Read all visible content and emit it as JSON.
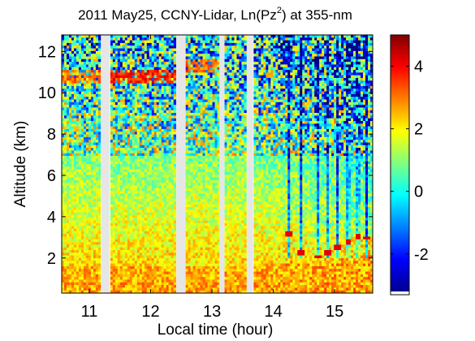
{
  "chart_data": {
    "type": "heatmap",
    "title_parts": {
      "prefix": "2011 May25, CCNY-Lidar, Ln(Pz",
      "superscript": "2",
      "suffix": ") at 355-nm"
    },
    "xlabel": "Local time (hour)",
    "ylabel": "Altitude (km)",
    "xlim": [
      10.55,
      15.62
    ],
    "ylim": [
      0.3,
      12.8
    ],
    "x_ticks": [
      "11",
      "12",
      "13",
      "14",
      "15"
    ],
    "x_tick_values": [
      11,
      12,
      13,
      14,
      15
    ],
    "y_ticks": [
      "2",
      "4",
      "6",
      "8",
      "10",
      "12"
    ],
    "y_tick_values": [
      2,
      4,
      6,
      8,
      10,
      12
    ],
    "colorbar": {
      "range": [
        -3.2,
        5.0
      ],
      "ticks": [
        "-2",
        "0",
        "2",
        "4"
      ],
      "tick_values": [
        -2,
        0,
        2,
        4
      ],
      "colormap": "jet"
    },
    "data_gaps_hours": [
      [
        11.2,
        11.33
      ],
      [
        12.42,
        12.57
      ],
      [
        13.12,
        13.2
      ],
      [
        13.57,
        13.67
      ]
    ],
    "cloud_layers": [
      {
        "x_range": [
          10.55,
          11.2
        ],
        "altitude_km": 10.8,
        "value": 2.3
      },
      {
        "x_range": [
          11.33,
          12.42
        ],
        "altitude_km": 10.8,
        "value": 3.0
      },
      {
        "x_range": [
          12.57,
          13.12
        ],
        "altitude_km": 11.3,
        "value": 2.5
      }
    ],
    "plume_columns_hours": [
      14.25,
      14.45,
      14.72,
      14.88,
      15.05,
      15.22,
      15.38,
      15.52
    ],
    "boundary_layer": {
      "top_km": [
        1.5,
        2.3
      ],
      "value_near_ground": 2.6
    }
  }
}
